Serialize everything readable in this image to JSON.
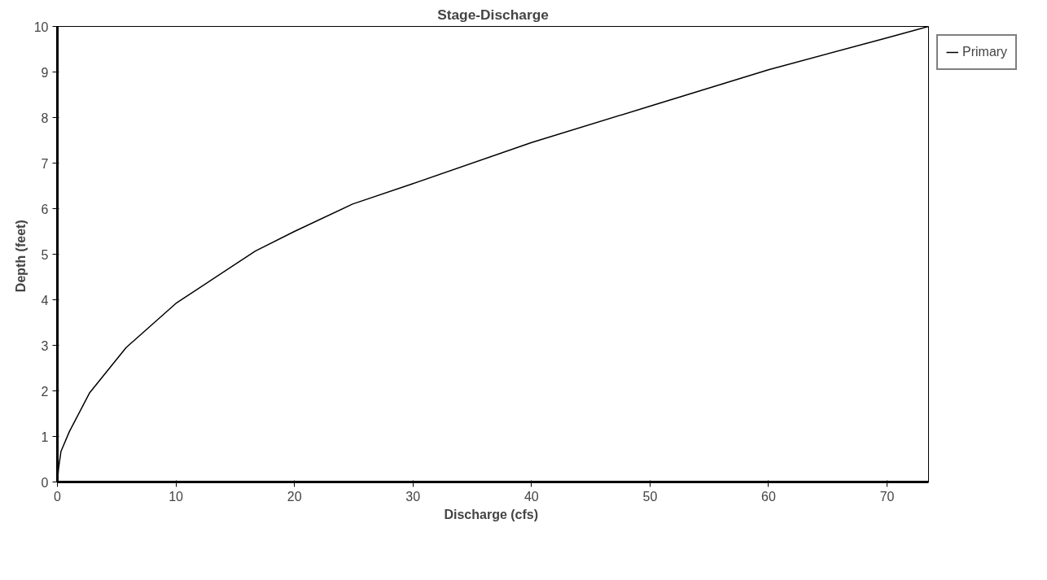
{
  "chart_data": {
    "type": "line",
    "title": "Stage-Discharge",
    "xlabel": "Discharge  (cfs)",
    "ylabel": "Depth  (feet)",
    "x": [
      0,
      0.1,
      0.3,
      1,
      2.7,
      5.8,
      10,
      16.7,
      20,
      24.9,
      30,
      40,
      50,
      60,
      70,
      73.5
    ],
    "series": [
      {
        "name": "Primary",
        "color": "#000000",
        "values": [
          0,
          0.3,
          0.67,
          1.1,
          1.95,
          2.95,
          3.92,
          5.07,
          5.5,
          6.1,
          6.55,
          7.45,
          8.25,
          9.05,
          9.75,
          10
        ]
      }
    ],
    "xlim": [
      0,
      73.5
    ],
    "ylim": [
      0,
      10
    ],
    "xticks": [
      0,
      10,
      20,
      30,
      40,
      50,
      60,
      70
    ],
    "yticks": [
      0,
      1,
      2,
      3,
      4,
      5,
      6,
      7,
      8,
      9,
      10
    ],
    "grid": false,
    "legend": "top right",
    "marker": "none",
    "line_style": "solid"
  }
}
